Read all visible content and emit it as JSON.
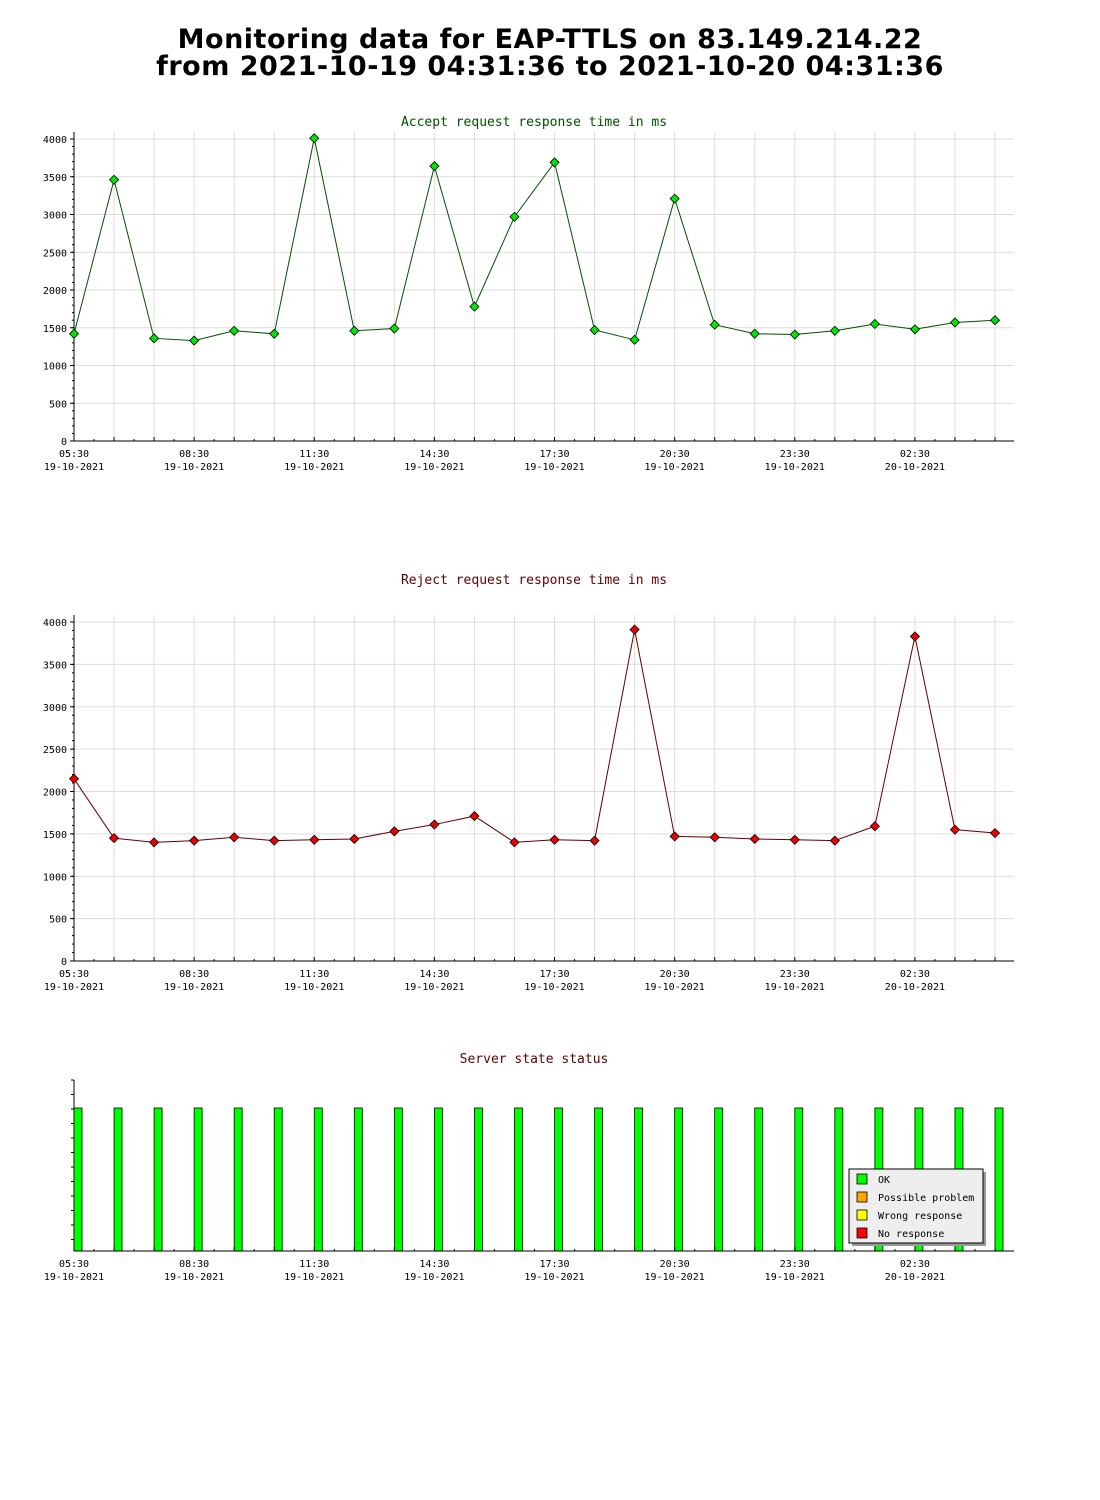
{
  "page": {
    "title_line1": "Monitoring data for EAP-TTLS on 83.149.214.22",
    "title_line2": "from 2021-10-19 04:31:36 to 2021-10-20 04:31:36"
  },
  "colors": {
    "accept_line": "#005000",
    "accept_marker": "#00e600",
    "reject_line": "#600000",
    "reject_marker": "#ee0000",
    "status_ok": "#00ff00",
    "status_possible_problem": "#ffa500",
    "status_wrong_response": "#ffff00",
    "status_no_response": "#ff0000",
    "grid": "#dddddd",
    "title_accept": "#005000",
    "title_reject": "#600000"
  },
  "x_ticks": [
    {
      "time": "05:30",
      "date": "19-10-2021"
    },
    {
      "time": "08:30",
      "date": "19-10-2021"
    },
    {
      "time": "11:30",
      "date": "19-10-2021"
    },
    {
      "time": "14:30",
      "date": "19-10-2021"
    },
    {
      "time": "17:30",
      "date": "19-10-2021"
    },
    {
      "time": "20:30",
      "date": "19-10-2021"
    },
    {
      "time": "23:30",
      "date": "19-10-2021"
    },
    {
      "time": "02:30",
      "date": "20-10-2021"
    }
  ],
  "chart_data": [
    {
      "type": "line",
      "title": "Accept request response time in ms",
      "xlabel": "",
      "ylabel": "",
      "ylim": [
        0,
        4000
      ],
      "yticks": [
        "0",
        "500",
        "1000",
        "1500",
        "2000",
        "2500",
        "3000",
        "3500",
        "4000"
      ],
      "grid": true,
      "x": [
        "05:30",
        "06:30",
        "07:30",
        "08:30",
        "09:30",
        "10:30",
        "11:30",
        "12:30",
        "13:30",
        "14:30",
        "15:30",
        "16:30",
        "17:30",
        "18:30",
        "19:30",
        "20:30",
        "21:30",
        "22:30",
        "23:30",
        "00:30",
        "01:30",
        "02:30",
        "03:30",
        "04:30"
      ],
      "values": [
        1420,
        3460,
        1360,
        1330,
        1460,
        1420,
        4010,
        1460,
        1490,
        3640,
        1780,
        2970,
        3690,
        1470,
        1340,
        3210,
        1540,
        1420,
        1410,
        1460,
        1550,
        1480,
        1570,
        1600
      ]
    },
    {
      "type": "line",
      "title": "Reject request response time in ms",
      "xlabel": "",
      "ylabel": "",
      "ylim": [
        0,
        4000
      ],
      "yticks": [
        "0",
        "500",
        "1000",
        "1500",
        "2000",
        "2500",
        "3000",
        "3500",
        "4000"
      ],
      "grid": true,
      "x": [
        "05:30",
        "06:30",
        "07:30",
        "08:30",
        "09:30",
        "10:30",
        "11:30",
        "12:30",
        "13:30",
        "14:30",
        "15:30",
        "16:30",
        "17:30",
        "18:30",
        "19:30",
        "20:30",
        "21:30",
        "22:30",
        "23:30",
        "00:30",
        "01:30",
        "02:30",
        "03:30",
        "04:30"
      ],
      "values": [
        2150,
        1450,
        1400,
        1420,
        1460,
        1420,
        1430,
        1440,
        1530,
        1610,
        1710,
        1400,
        1430,
        1420,
        3910,
        1470,
        1460,
        1440,
        1430,
        1420,
        1590,
        3830,
        1550,
        1510
      ]
    },
    {
      "type": "bar",
      "title": "Server state status",
      "xlabel": "",
      "ylabel": "",
      "grid": false,
      "legend": "bottom-right",
      "legend_entries": [
        "OK",
        "Possible problem",
        "Wrong response",
        "No response"
      ],
      "x": [
        "05:30",
        "06:30",
        "07:30",
        "08:30",
        "09:30",
        "10:30",
        "11:30",
        "12:30",
        "13:30",
        "14:30",
        "15:30",
        "16:30",
        "17:30",
        "18:30",
        "19:30",
        "20:30",
        "21:30",
        "22:30",
        "23:30",
        "00:30",
        "01:30",
        "02:30",
        "03:30",
        "04:30"
      ],
      "values": [
        "OK",
        "OK",
        "OK",
        "OK",
        "OK",
        "OK",
        "OK",
        "OK",
        "OK",
        "OK",
        "OK",
        "OK",
        "OK",
        "OK",
        "OK",
        "OK",
        "OK",
        "OK",
        "OK",
        "OK",
        "OK",
        "OK",
        "OK",
        "OK"
      ]
    }
  ]
}
